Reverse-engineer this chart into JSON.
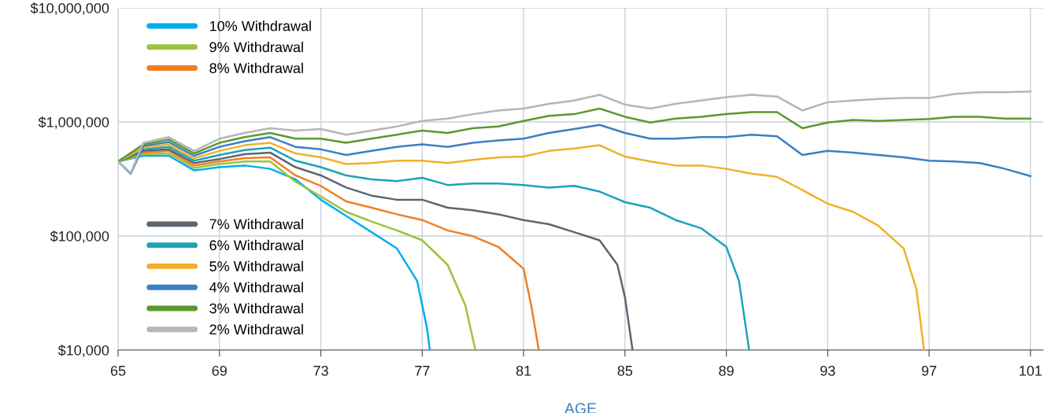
{
  "chart_data": {
    "type": "line",
    "xlabel": "AGE",
    "log": "y",
    "grid": true,
    "legend": "left",
    "line_style": "solid",
    "marker": "none",
    "xlim": [
      65,
      101.5
    ],
    "xticks": [
      65,
      69,
      73,
      77,
      81,
      85,
      89,
      93,
      97,
      101
    ],
    "ylim": [
      10000,
      10000000
    ],
    "yticks": [
      {
        "value": 10000,
        "label": "$10,000"
      },
      {
        "value": 100000,
        "label": "$100,000"
      },
      {
        "value": 1000000,
        "label": "$1,000,000"
      },
      {
        "value": 10000000,
        "label": "$10,000,000"
      }
    ],
    "series": [
      {
        "name": "10% Withdrawal",
        "color": "#00aeef",
        "x": [
          65,
          66,
          67,
          68,
          69,
          70,
          71,
          72,
          73,
          74,
          75,
          76,
          76.8,
          77.2,
          77.3
        ],
        "values": [
          450000,
          505000,
          505000,
          376000,
          401000,
          415000,
          388000,
          314000,
          208000,
          150000,
          108000,
          77800,
          40400,
          15100,
          10000
        ]
      },
      {
        "name": "9% Withdrawal",
        "color": "#9cc33f",
        "x": [
          65,
          66,
          67,
          68,
          69,
          70,
          71,
          72,
          73,
          74,
          75,
          76,
          77,
          78,
          78.7,
          79.1
        ],
        "values": [
          450000,
          522000,
          530000,
          395000,
          428000,
          450000,
          450000,
          299000,
          222000,
          163000,
          134000,
          112000,
          91600,
          56000,
          24700,
          10000
        ]
      },
      {
        "name": "8% Withdrawal",
        "color": "#f07f22",
        "x": [
          65,
          66,
          67,
          68,
          69,
          70,
          71,
          72,
          73,
          74,
          75,
          76,
          77,
          78,
          79,
          80,
          81,
          81.3,
          81.6
        ],
        "values": [
          450000,
          539000,
          557000,
          415000,
          450000,
          481000,
          489000,
          340000,
          275000,
          201000,
          177000,
          155000,
          138000,
          112000,
          99500,
          80300,
          51600,
          24700,
          10000
        ]
      },
      {
        "name": "7% Withdrawal",
        "color": "#5b6670",
        "x": [
          65,
          66,
          67,
          68,
          69,
          70,
          71,
          72,
          73,
          74,
          75,
          76,
          77,
          78,
          79,
          80,
          81,
          82,
          83,
          84,
          84.7,
          85,
          85.3
        ],
        "values": [
          450000,
          557000,
          575000,
          436000,
          473000,
          522000,
          539000,
          401000,
          340000,
          266000,
          226000,
          208000,
          208000,
          177000,
          168000,
          155000,
          138000,
          127000,
          108000,
          91600,
          56000,
          29000,
          10000
        ]
      },
      {
        "name": "6% Withdrawal",
        "color": "#1ca3b8",
        "x": [
          65,
          66,
          67,
          68,
          69,
          70,
          71,
          72,
          73,
          74,
          75,
          76,
          77,
          78,
          79,
          80,
          81,
          82,
          83,
          84,
          85,
          86,
          87,
          88,
          89,
          89.5,
          89.9
        ],
        "values": [
          450000,
          575000,
          605000,
          457000,
          513000,
          566000,
          595000,
          457000,
          401000,
          340000,
          314000,
          303000,
          324000,
          280000,
          289000,
          289000,
          280000,
          266000,
          275000,
          245000,
          198000,
          177000,
          138000,
          117000,
          80300,
          40400,
          10000
        ]
      },
      {
        "name": "5% Withdrawal",
        "color": "#f2b02a",
        "x": [
          65,
          66,
          67,
          68,
          69,
          70,
          71,
          72,
          73,
          74,
          75,
          76,
          77,
          78,
          79,
          80,
          81,
          82,
          83,
          84,
          85,
          86,
          87,
          88,
          89,
          90,
          91,
          92,
          93,
          94,
          95,
          96,
          96.5,
          96.8
        ],
        "values": [
          450000,
          595000,
          635000,
          481000,
          557000,
          625000,
          656000,
          530000,
          489000,
          428000,
          436000,
          457000,
          457000,
          436000,
          465000,
          489000,
          497000,
          557000,
          585000,
          625000,
          497000,
          450000,
          415000,
          415000,
          388000,
          352000,
          330000,
          253000,
          192000,
          163000,
          123000,
          77800,
          34200,
          10000
        ]
      },
      {
        "name": "4% Withdrawal",
        "color": "#3b7fc4",
        "x": [
          65,
          65.5,
          66,
          67,
          68,
          69,
          70,
          71,
          72,
          73,
          74,
          75,
          76,
          77,
          78,
          79,
          80,
          81,
          82,
          83,
          84,
          85,
          86,
          87,
          88,
          89,
          90,
          91,
          92,
          93,
          94,
          95,
          96,
          97,
          98,
          99,
          100,
          101
        ],
        "values": [
          450000,
          352000,
          615000,
          667000,
          505000,
          605000,
          678000,
          736000,
          605000,
          575000,
          513000,
          557000,
          605000,
          635000,
          605000,
          656000,
          689000,
          713000,
          800000,
          868000,
          942000,
          800000,
          713000,
          713000,
          736000,
          736000,
          773000,
          748000,
          513000,
          557000,
          539000,
          513000,
          489000,
          457000,
          450000,
          436000,
          388000,
          335000
        ]
      },
      {
        "name": "3% Withdrawal",
        "color": "#5a9a2e",
        "x": [
          65,
          66,
          67,
          68,
          69,
          70,
          71,
          72,
          73,
          74,
          75,
          76,
          77,
          78,
          79,
          80,
          81,
          82,
          83,
          84,
          85,
          86,
          87,
          88,
          89,
          90,
          91,
          92,
          93,
          94,
          95,
          96,
          97,
          98,
          99,
          100,
          101
        ],
        "values": [
          450000,
          635000,
          701000,
          530000,
          656000,
          736000,
          800000,
          713000,
          713000,
          656000,
          713000,
          773000,
          840000,
          800000,
          882000,
          912000,
          1020000,
          1130000,
          1170000,
          1310000,
          1110000,
          988000,
          1070000,
          1110000,
          1170000,
          1220000,
          1220000,
          882000,
          988000,
          1040000,
          1020000,
          1040000,
          1060000,
          1110000,
          1110000,
          1070000,
          1070000
        ]
      },
      {
        "name": "2% Withdrawal",
        "color": "#b5b6b8",
        "x": [
          65,
          65.5,
          66,
          67,
          68,
          69,
          70,
          71,
          72,
          73,
          74,
          75,
          76,
          77,
          78,
          79,
          80,
          81,
          82,
          83,
          84,
          85,
          86,
          87,
          88,
          89,
          90,
          91,
          92,
          93,
          94,
          95,
          96,
          97,
          98,
          99,
          100,
          101
        ],
        "values": [
          450000,
          358000,
          656000,
          736000,
          557000,
          713000,
          800000,
          882000,
          840000,
          868000,
          773000,
          840000,
          912000,
          1020000,
          1070000,
          1170000,
          1260000,
          1310000,
          1440000,
          1540000,
          1730000,
          1420000,
          1310000,
          1440000,
          1540000,
          1650000,
          1730000,
          1670000,
          1260000,
          1490000,
          1540000,
          1590000,
          1620000,
          1620000,
          1760000,
          1820000,
          1820000,
          1850000
        ]
      }
    ]
  }
}
